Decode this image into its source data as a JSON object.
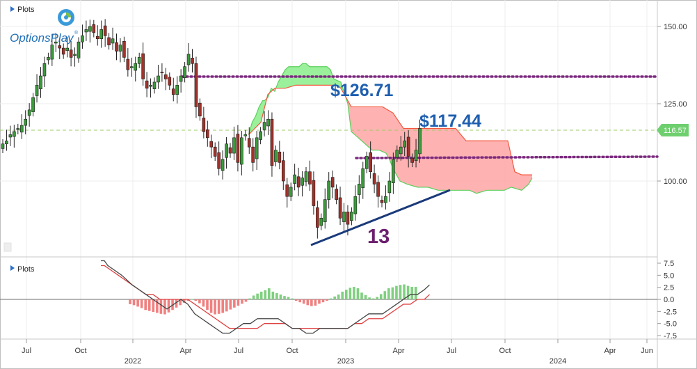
{
  "panel_labels": {
    "main": "Plots",
    "osc": "Plots"
  },
  "logo": {
    "text": "OptionsPlay",
    "registered": "®"
  },
  "price_label": "116.57",
  "annotations": {
    "upper_resistance": "$126.71",
    "lower_resistance": "$117.44",
    "count": "13"
  },
  "colors": {
    "up_candle": "#3a9a3a",
    "down_candle": "#a0322a",
    "cloud_bull": "#90ee90",
    "cloud_bear": "#ffaaaa",
    "dotted_line": "#7b2a7e",
    "trendline": "#1a3a7a",
    "annotation_blue": "#1f5fb0",
    "annotation_purple": "#6b1f6e",
    "price_tag": "#6fcf6f",
    "macd_line": "#444444",
    "signal_line": "#e04040",
    "hist_pos": "#7fd07f",
    "hist_neg": "#f08080"
  },
  "chart_data": [
    {
      "type": "candlestick",
      "title": "",
      "x_ticks": [
        "Jul",
        "Oct",
        "2022",
        "Apr",
        "Jul",
        "Oct",
        "2023",
        "Apr",
        "Jul",
        "Oct",
        "2024",
        "Apr",
        "Jun"
      ],
      "y_ticks": [
        100.0,
        125.0,
        150.0
      ],
      "ylim": [
        80,
        157
      ],
      "current_price": 116.57,
      "resistance_levels": [
        126.71,
        117.44
      ],
      "start_week": "2021-05-07",
      "close": [
        112,
        113,
        115,
        116,
        117,
        118,
        120,
        123,
        127,
        131,
        134,
        138,
        140,
        144,
        145,
        143,
        141,
        143,
        140,
        141,
        145,
        147,
        149,
        150,
        148,
        146,
        149,
        147,
        144,
        146,
        142,
        144,
        140,
        136,
        137,
        138,
        140,
        133,
        130,
        131,
        132,
        134,
        135,
        133,
        131,
        128,
        131,
        134,
        137,
        141,
        138,
        124,
        121,
        116,
        114,
        111,
        108,
        104,
        107,
        112,
        109,
        114,
        106,
        114,
        115,
        111,
        106,
        114,
        116,
        119,
        120,
        105,
        110,
        106,
        100,
        95,
        98,
        102,
        98,
        101,
        103,
        99,
        92,
        85,
        88,
        94,
        100,
        98,
        94,
        88,
        90,
        86,
        90,
        95,
        99,
        104,
        108,
        103,
        99,
        95,
        93,
        95,
        100,
        107,
        110,
        111,
        113,
        108,
        106,
        110,
        117
      ]
    },
    {
      "type": "ichimoku_cloud",
      "span_a": [
        [
          143,
          115
        ],
        [
          145,
          119
        ],
        [
          147,
          121
        ],
        [
          149,
          124
        ],
        [
          151,
          126
        ],
        [
          152,
          126
        ],
        [
          154,
          127
        ],
        [
          156,
          130
        ],
        [
          158,
          129
        ],
        [
          160,
          132
        ],
        [
          162,
          134
        ],
        [
          164,
          136
        ],
        [
          166,
          137
        ],
        [
          168,
          137
        ],
        [
          170,
          137
        ],
        [
          172,
          137
        ],
        [
          174,
          138
        ],
        [
          176,
          138
        ],
        [
          178,
          137
        ],
        [
          180,
          137
        ],
        [
          182,
          137
        ],
        [
          184,
          137
        ],
        [
          186,
          137
        ],
        [
          188,
          137
        ],
        [
          190,
          136
        ],
        [
          192,
          133
        ],
        [
          196,
          132
        ],
        [
          200,
          125
        ],
        [
          202,
          116
        ],
        [
          208,
          113
        ],
        [
          214,
          110
        ],
        [
          218,
          110
        ],
        [
          222,
          109
        ],
        [
          224,
          107
        ],
        [
          226,
          104
        ],
        [
          230,
          100
        ],
        [
          234,
          99
        ],
        [
          240,
          98
        ],
        [
          246,
          98
        ],
        [
          252,
          97
        ],
        [
          262,
          97
        ],
        [
          270,
          97
        ],
        [
          274,
          96
        ],
        [
          280,
          97
        ],
        [
          290,
          97
        ],
        [
          294,
          98
        ],
        [
          300,
          97
        ],
        [
          304,
          99
        ],
        [
          306,
          101
        ]
      ],
      "span_b": [
        [
          143,
          115
        ],
        [
          150,
          119
        ],
        [
          154,
          128
        ],
        [
          158,
          130
        ],
        [
          164,
          130
        ],
        [
          170,
          131
        ],
        [
          176,
          131
        ],
        [
          182,
          131
        ],
        [
          188,
          131
        ],
        [
          194,
          131
        ],
        [
          196,
          130
        ],
        [
          202,
          124
        ],
        [
          208,
          124
        ],
        [
          214,
          124
        ],
        [
          220,
          124
        ],
        [
          226,
          122
        ],
        [
          232,
          117
        ],
        [
          240,
          117
        ],
        [
          246,
          117
        ],
        [
          252,
          117
        ],
        [
          262,
          117
        ],
        [
          268,
          113
        ],
        [
          274,
          113
        ],
        [
          280,
          113
        ],
        [
          286,
          113
        ],
        [
          292,
          113
        ],
        [
          296,
          103
        ],
        [
          300,
          102
        ],
        [
          306,
          102
        ]
      ]
    },
    {
      "type": "oscillator",
      "y_ticks": [
        7.5,
        5.0,
        2.5,
        0.0,
        -2.5,
        -5.0,
        -7.5
      ],
      "ylim": [
        -9,
        8
      ],
      "macd": [
        [
          58,
          8
        ],
        [
          60,
          8
        ],
        [
          62,
          7
        ],
        [
          66,
          6
        ],
        [
          70,
          5
        ],
        [
          76,
          3
        ],
        [
          80,
          2
        ],
        [
          84,
          1
        ],
        [
          88,
          0
        ],
        [
          92,
          -1
        ],
        [
          96,
          -2
        ],
        [
          100,
          -1
        ],
        [
          104,
          0
        ],
        [
          108,
          -1
        ],
        [
          112,
          -3
        ],
        [
          116,
          -4
        ],
        [
          120,
          -5
        ],
        [
          124,
          -6
        ],
        [
          128,
          -7
        ],
        [
          132,
          -7
        ],
        [
          136,
          -6
        ],
        [
          140,
          -5
        ],
        [
          144,
          -5
        ],
        [
          148,
          -4
        ],
        [
          152,
          -4
        ],
        [
          156,
          -4
        ],
        [
          160,
          -4
        ],
        [
          164,
          -5
        ],
        [
          168,
          -6
        ],
        [
          172,
          -6
        ],
        [
          176,
          -7
        ],
        [
          180,
          -7
        ],
        [
          184,
          -6
        ],
        [
          188,
          -6
        ],
        [
          192,
          -6
        ],
        [
          196,
          -6
        ],
        [
          200,
          -6
        ],
        [
          204,
          -5
        ],
        [
          208,
          -4
        ],
        [
          212,
          -3
        ],
        [
          216,
          -3
        ],
        [
          220,
          -3
        ],
        [
          224,
          -2
        ],
        [
          228,
          -1
        ],
        [
          232,
          0
        ],
        [
          236,
          1
        ],
        [
          240,
          1
        ],
        [
          244,
          2
        ],
        [
          247,
          3
        ]
      ],
      "signal": [
        [
          58,
          7
        ],
        [
          60,
          7
        ],
        [
          64,
          6
        ],
        [
          68,
          5
        ],
        [
          72,
          4
        ],
        [
          76,
          3
        ],
        [
          80,
          2
        ],
        [
          84,
          1
        ],
        [
          88,
          1
        ],
        [
          92,
          0
        ],
        [
          96,
          0
        ],
        [
          100,
          0
        ],
        [
          104,
          0
        ],
        [
          108,
          0
        ],
        [
          112,
          -1
        ],
        [
          116,
          -2
        ],
        [
          120,
          -3
        ],
        [
          124,
          -4
        ],
        [
          128,
          -5
        ],
        [
          132,
          -6
        ],
        [
          136,
          -6
        ],
        [
          140,
          -6
        ],
        [
          144,
          -6
        ],
        [
          148,
          -6
        ],
        [
          152,
          -5
        ],
        [
          156,
          -5
        ],
        [
          160,
          -5
        ],
        [
          164,
          -5
        ],
        [
          168,
          -6
        ],
        [
          172,
          -6
        ],
        [
          176,
          -6
        ],
        [
          180,
          -6
        ],
        [
          184,
          -6
        ],
        [
          188,
          -6
        ],
        [
          192,
          -6
        ],
        [
          196,
          -6
        ],
        [
          200,
          -6
        ],
        [
          204,
          -5
        ],
        [
          208,
          -5
        ],
        [
          212,
          -4
        ],
        [
          216,
          -4
        ],
        [
          220,
          -4
        ],
        [
          224,
          -3
        ],
        [
          228,
          -2
        ],
        [
          232,
          -1
        ],
        [
          236,
          -1
        ],
        [
          240,
          0
        ],
        [
          244,
          0
        ],
        [
          247,
          1
        ]
      ],
      "histogram": [
        -1.0,
        -1.2,
        -1.5,
        -1.8,
        -2.2,
        -2.4,
        -2.6,
        -2.8,
        -3.0,
        -3.1,
        -2.7,
        -2.2,
        -1.7,
        -1.2,
        -0.7,
        -0.3,
        0.1,
        -0.3,
        -0.8,
        -1.5,
        -2.2,
        -2.8,
        -3.1,
        -3.0,
        -2.8,
        -2.5,
        -2.1,
        -1.7,
        -1.3,
        -0.9,
        -0.5,
        0.2,
        0.8,
        1.2,
        1.6,
        1.9,
        2.3,
        1.6,
        1.3,
        1.0,
        0.7,
        0.5,
        0.2,
        -0.3,
        -0.6,
        -0.9,
        -1.2,
        -1.4,
        -1.3,
        -0.9,
        -0.6,
        -0.3,
        0.2,
        0.6,
        1.0,
        1.6,
        2.0,
        2.4,
        2.6,
        2.3,
        1.4,
        0.9,
        0.4,
        0.2,
        0.5,
        1.1,
        1.7,
        2.3,
        2.5,
        2.8,
        3.0,
        3.1,
        2.8,
        2.6,
        2.6
      ]
    }
  ]
}
